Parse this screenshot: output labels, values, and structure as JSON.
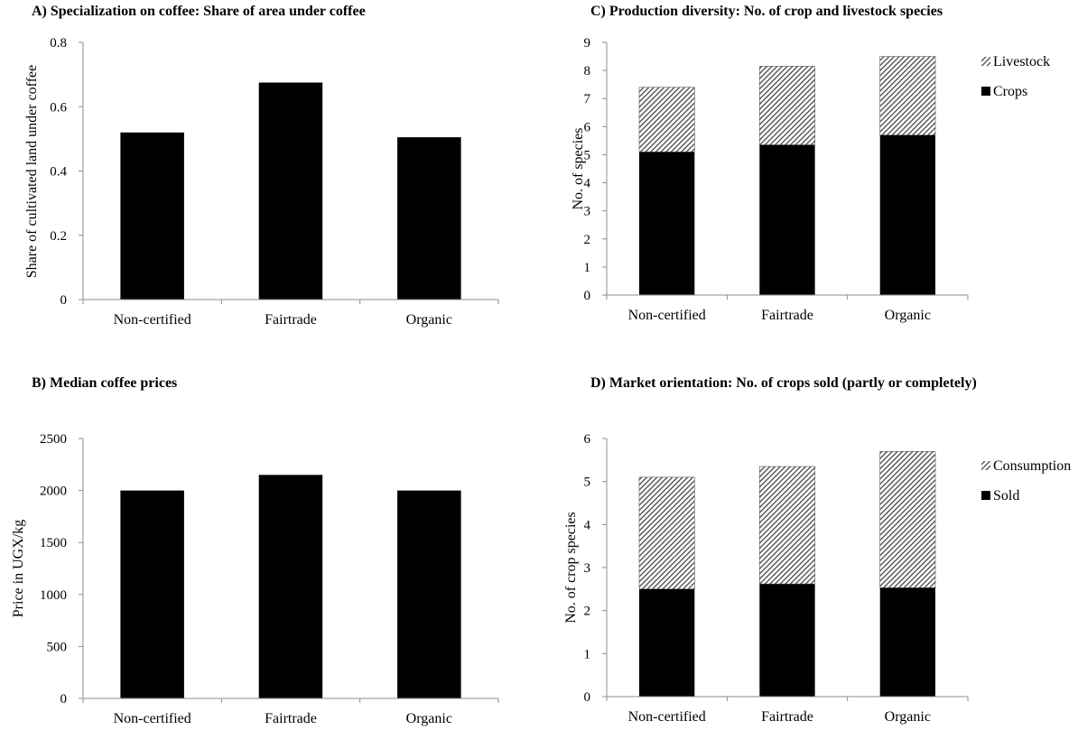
{
  "chart_data": [
    {
      "id": "A",
      "type": "bar",
      "title": "A) Specialization on coffee: Share of area under coffee",
      "ylabel": "Share of cultivated land under coffee",
      "xlabel": "",
      "categories": [
        "Non-certified",
        "Fairtrade",
        "Organic"
      ],
      "ylim": [
        0,
        0.8
      ],
      "yticks": [
        "0",
        "0.2",
        "0.4",
        "0.6",
        "0.8"
      ],
      "yticks_values": [
        0,
        0.2,
        0.4,
        0.6,
        0.8
      ],
      "series": [
        {
          "values": [
            0.52,
            0.675,
            0.505
          ],
          "pattern": "solid"
        }
      ],
      "legend": null,
      "grid": false
    },
    {
      "id": "B",
      "type": "bar",
      "title": "B) Median coffee prices",
      "ylabel": "Price in UGX/kg",
      "xlabel": "",
      "categories": [
        "Non-certified",
        "Fairtrade",
        "Organic"
      ],
      "ylim": [
        0,
        2500
      ],
      "yticks": [
        "0",
        "500",
        "1000",
        "1500",
        "2000",
        "2500"
      ],
      "yticks_values": [
        0,
        500,
        1000,
        1500,
        2000,
        2500
      ],
      "series": [
        {
          "values": [
            2000,
            2150,
            2000
          ],
          "pattern": "solid"
        }
      ],
      "legend": null,
      "grid": false
    },
    {
      "id": "C",
      "type": "bar",
      "stacked": true,
      "title": "C) Production diversity: No. of crop and livestock species",
      "ylabel": "No. of species",
      "xlabel": "",
      "categories": [
        "Non-certified",
        "Fairtrade",
        "Organic"
      ],
      "ylim": [
        0,
        9
      ],
      "yticks": [
        "0",
        "1",
        "2",
        "3",
        "4",
        "5",
        "6",
        "7",
        "8",
        "9"
      ],
      "yticks_values": [
        0,
        1,
        2,
        3,
        4,
        5,
        6,
        7,
        8,
        9
      ],
      "series": [
        {
          "name": "Crops",
          "values": [
            5.1,
            5.35,
            5.7
          ],
          "pattern": "solid"
        },
        {
          "name": "Livestock",
          "values": [
            2.3,
            2.8,
            2.8
          ],
          "pattern": "hatch"
        }
      ],
      "legend": "right",
      "grid": false
    },
    {
      "id": "D",
      "type": "bar",
      "stacked": true,
      "title": "D) Market orientation: No. of crops sold (partly or completely)",
      "ylabel": "No. of crop species",
      "xlabel": "",
      "categories": [
        "Non-certified",
        "Fairtrade",
        "Organic"
      ],
      "ylim": [
        0,
        6
      ],
      "yticks": [
        "0",
        "1",
        "2",
        "3",
        "4",
        "5",
        "6"
      ],
      "yticks_values": [
        0,
        1,
        2,
        3,
        4,
        5,
        6
      ],
      "series": [
        {
          "name": "Sold",
          "values": [
            2.5,
            2.62,
            2.53
          ],
          "pattern": "solid"
        },
        {
          "name": "Consumption",
          "values": [
            2.6,
            2.73,
            3.17
          ],
          "pattern": "hatch"
        }
      ],
      "legend": "right",
      "grid": false
    }
  ]
}
